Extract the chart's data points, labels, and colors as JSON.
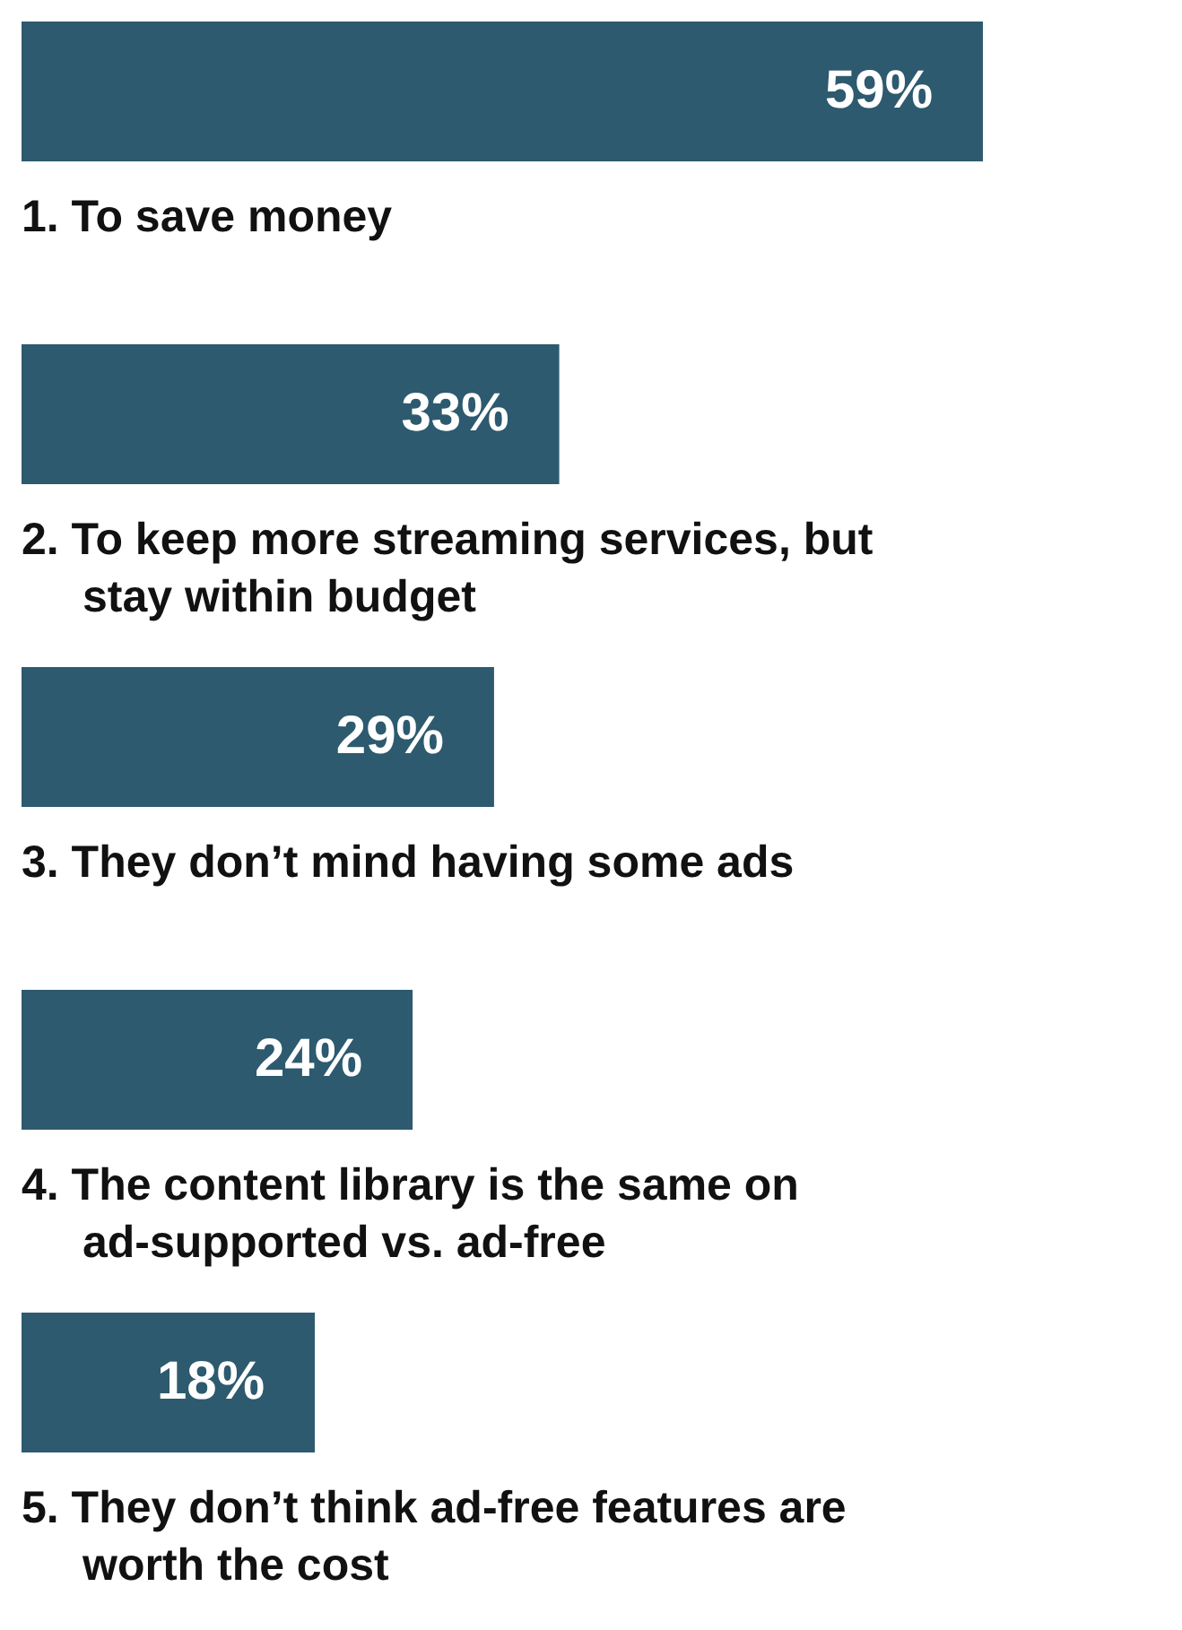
{
  "chart_data": {
    "type": "bar",
    "orientation": "horizontal",
    "categories": [
      "1. To save money",
      "2. To keep more streaming services, but stay within budget",
      "3. They don’t mind having some ads",
      "4. The content library is the same on ad-supported vs. ad-free",
      "5. They don’t think ad-free features are worth the cost"
    ],
    "values": [
      59,
      33,
      29,
      24,
      18
    ],
    "value_labels": [
      "59%",
      "33%",
      "29%",
      "24%",
      "18%"
    ],
    "color": "#2d5a6e"
  }
}
